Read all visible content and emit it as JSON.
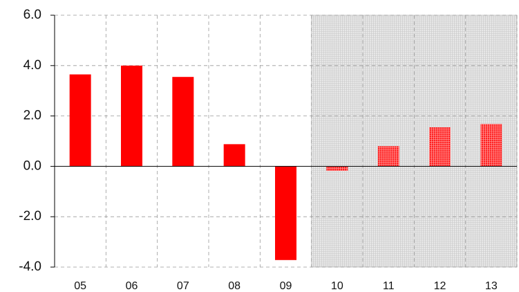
{
  "chart_data": {
    "type": "bar",
    "categories": [
      "05",
      "06",
      "07",
      "08",
      "09",
      "10",
      "11",
      "12",
      "13"
    ],
    "values": [
      3.65,
      4.0,
      3.55,
      0.88,
      -3.72,
      -0.18,
      0.8,
      1.55,
      1.68
    ],
    "color": "#ff0000",
    "ylim": [
      -4,
      6
    ],
    "yticks": [
      {
        "value": -4,
        "label": "-4.0"
      },
      {
        "value": -2,
        "label": "-2.0"
      },
      {
        "value": 0,
        "label": "0.0"
      },
      {
        "value": 2,
        "label": "2.0"
      },
      {
        "value": 4,
        "label": "4.0"
      },
      {
        "value": 6,
        "label": "6.0"
      }
    ],
    "grid": true,
    "shade_from_index": 5
  }
}
